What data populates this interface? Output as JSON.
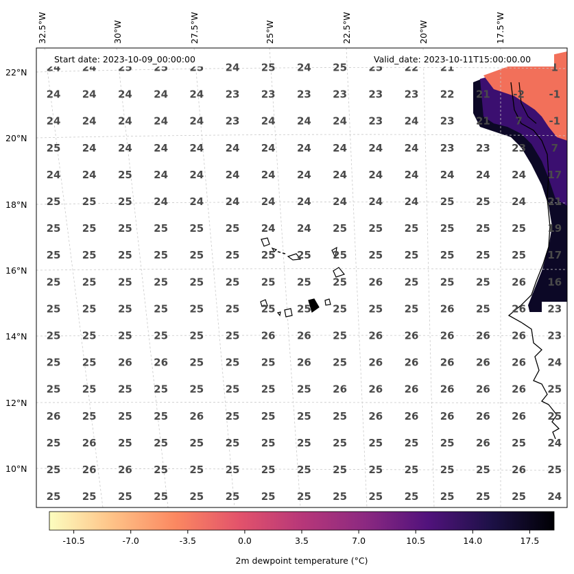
{
  "header": {
    "start_date": "Start date: 2023-10-09_00:00:00",
    "valid_date": "Valid_date: 2023-10-11T15:00:00.00"
  },
  "axes": {
    "lon_labels": [
      "32.5°W",
      "30°W",
      "27.5°W",
      "25°W",
      "22.5°W",
      "20°W",
      "17.5°W"
    ],
    "lat_labels": [
      "22°N",
      "20°N",
      "18°N",
      "16°N",
      "14°N",
      "12°N",
      "10°N"
    ]
  },
  "colorbar": {
    "label": "2m dewpoint temperature ($^{\\circ}$C)",
    "label_display": "2m dewpoint temperature (°C)",
    "ticks": [
      "-10.5",
      "-7.0",
      "-3.5",
      "0.0",
      "3.5",
      "7.0",
      "10.5",
      "14.0",
      "17.5"
    ],
    "colormap": "magma_r",
    "colors": [
      "#fcfdbf",
      "#fec287",
      "#fb8861",
      "#e3536b",
      "#b73779",
      "#8c2981",
      "#51127c",
      "#1d1147",
      "#000004"
    ]
  },
  "chart_data": {
    "type": "heatmap",
    "title": "",
    "xlabel": "",
    "ylabel": "",
    "colorbar_range": [
      -12,
      19
    ],
    "grid": true,
    "value_rows": [
      [
        "24",
        "24",
        "25",
        "25",
        "25",
        "24",
        "25",
        "24",
        "25",
        "25",
        "22",
        "21",
        "",
        "",
        "1"
      ],
      [
        "24",
        "24",
        "24",
        "24",
        "24",
        "23",
        "23",
        "23",
        "23",
        "23",
        "23",
        "22",
        "21",
        "-2",
        "-1"
      ],
      [
        "24",
        "24",
        "24",
        "24",
        "24",
        "23",
        "24",
        "24",
        "24",
        "23",
        "24",
        "23",
        "21",
        "7",
        "-1"
      ],
      [
        "25",
        "24",
        "24",
        "24",
        "24",
        "24",
        "24",
        "24",
        "24",
        "24",
        "24",
        "23",
        "23",
        "23",
        "7"
      ],
      [
        "24",
        "24",
        "25",
        "24",
        "24",
        "24",
        "24",
        "24",
        "24",
        "24",
        "24",
        "24",
        "24",
        "24",
        "17"
      ],
      [
        "25",
        "25",
        "25",
        "24",
        "24",
        "24",
        "24",
        "24",
        "24",
        "24",
        "24",
        "25",
        "25",
        "24",
        "21"
      ],
      [
        "25",
        "25",
        "25",
        "25",
        "25",
        "25",
        "24",
        "24",
        "25",
        "25",
        "25",
        "25",
        "25",
        "25",
        "19"
      ],
      [
        "25",
        "25",
        "25",
        "25",
        "25",
        "25",
        "25",
        "25",
        "25",
        "25",
        "25",
        "25",
        "25",
        "25",
        "17"
      ],
      [
        "25",
        "25",
        "25",
        "25",
        "25",
        "25",
        "25",
        "25",
        "25",
        "26",
        "25",
        "25",
        "25",
        "26",
        "16"
      ],
      [
        "25",
        "25",
        "25",
        "25",
        "25",
        "25",
        "25",
        "25",
        "25",
        "25",
        "25",
        "26",
        "25",
        "26",
        "23"
      ],
      [
        "25",
        "25",
        "25",
        "25",
        "25",
        "25",
        "26",
        "26",
        "25",
        "26",
        "26",
        "26",
        "26",
        "26",
        "23"
      ],
      [
        "25",
        "25",
        "26",
        "26",
        "25",
        "25",
        "25",
        "26",
        "25",
        "26",
        "26",
        "26",
        "26",
        "26",
        "24"
      ],
      [
        "25",
        "25",
        "25",
        "25",
        "25",
        "25",
        "25",
        "25",
        "26",
        "26",
        "26",
        "26",
        "26",
        "26",
        "25"
      ],
      [
        "26",
        "25",
        "25",
        "25",
        "26",
        "25",
        "25",
        "25",
        "25",
        "26",
        "26",
        "26",
        "26",
        "26",
        "25"
      ],
      [
        "25",
        "26",
        "25",
        "25",
        "25",
        "25",
        "25",
        "25",
        "25",
        "25",
        "25",
        "25",
        "26",
        "25",
        "24"
      ],
      [
        "25",
        "26",
        "26",
        "25",
        "25",
        "25",
        "25",
        "25",
        "25",
        "25",
        "25",
        "25",
        "25",
        "26",
        "25"
      ],
      [
        "25",
        "25",
        "25",
        "25",
        "25",
        "25",
        "25",
        "25",
        "25",
        "25",
        "25",
        "25",
        "25",
        "25",
        "24"
      ]
    ]
  }
}
